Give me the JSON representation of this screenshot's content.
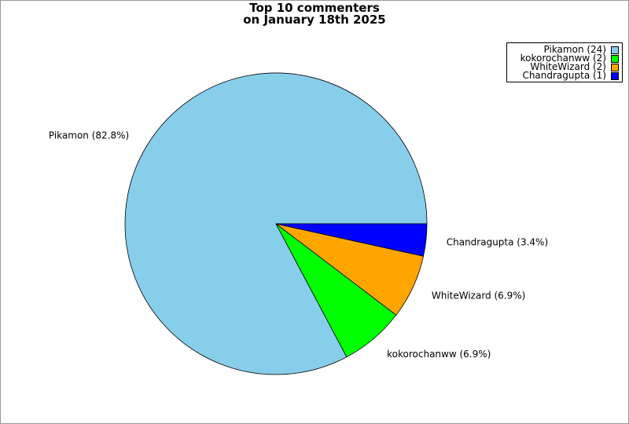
{
  "chart_data": {
    "type": "pie",
    "title_lines": [
      "Top 10 commenters",
      "on January 18th 2025"
    ],
    "slices": [
      {
        "name": "Pikamon",
        "count": 24,
        "percent": 82.8,
        "color": "#87ceeb",
        "label": "Pikamon (82.8%)",
        "legend": "Pikamon (24)"
      },
      {
        "name": "kokorochanww",
        "count": 2,
        "percent": 6.9,
        "color": "#00ff00",
        "label": "kokorochanww (6.9%)",
        "legend": "kokorochanww (2)"
      },
      {
        "name": "WhiteWizard",
        "count": 2,
        "percent": 6.9,
        "color": "#ffa500",
        "label": "WhiteWizard (6.9%)",
        "legend": "WhiteWizard (2)"
      },
      {
        "name": "Chandragupta",
        "count": 1,
        "percent": 3.4,
        "color": "#0000ff",
        "label": "Chandragupta (3.4%)",
        "legend": "Chandragupta (1)"
      }
    ],
    "legend_position": "top-right"
  }
}
